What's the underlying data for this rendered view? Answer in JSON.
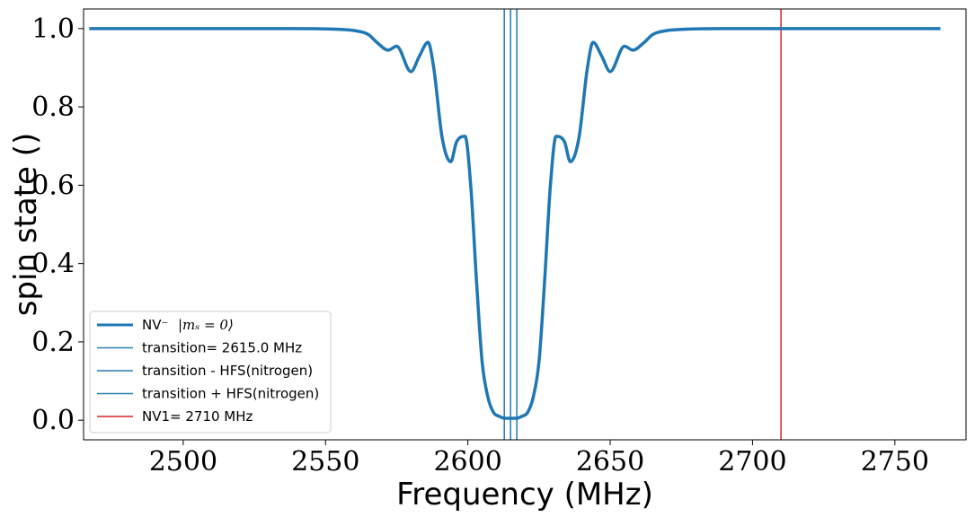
{
  "chart_data": {
    "type": "line",
    "title": "",
    "xlabel": "Frequency (MHz)",
    "ylabel": "spin state ()",
    "xlim": [
      2465,
      2775
    ],
    "ylim": [
      -0.05,
      1.05
    ],
    "x_ticks": [
      "2500",
      "2550",
      "2600",
      "2650",
      "2700",
      "2750"
    ],
    "x_tick_values": [
      2500,
      2550,
      2600,
      2650,
      2700,
      2750
    ],
    "y_ticks": [
      "0.0",
      "0.2",
      "0.4",
      "0.6",
      "0.8",
      "1.0"
    ],
    "y_tick_values": [
      0.0,
      0.2,
      0.4,
      0.6,
      0.8,
      1.0
    ],
    "grid": false,
    "legend_position": "lower-left",
    "series": [
      {
        "name": "NV⁻ |mₛ = 0⟩",
        "color": "#1f77b4",
        "x": [
          2467,
          2540,
          2555,
          2560,
          2565,
          2568,
          2572,
          2575,
          2580,
          2583,
          2586,
          2588,
          2591,
          2594,
          2596,
          2599,
          2601,
          2603,
          2605,
          2607,
          2609,
          2611,
          2613,
          2615,
          2617,
          2619,
          2621,
          2623,
          2625,
          2627,
          2629,
          2631,
          2634,
          2636,
          2639,
          2642,
          2644,
          2647,
          2650,
          2655,
          2658,
          2662,
          2665,
          2670,
          2675,
          2690,
          2710,
          2766
        ],
        "y": [
          1.0,
          1.0,
          0.998,
          0.995,
          0.985,
          0.965,
          0.945,
          0.955,
          0.89,
          0.93,
          0.965,
          0.9,
          0.72,
          0.66,
          0.71,
          0.725,
          0.6,
          0.36,
          0.15,
          0.06,
          0.02,
          0.01,
          0.005,
          0.005,
          0.005,
          0.01,
          0.02,
          0.06,
          0.15,
          0.36,
          0.6,
          0.725,
          0.71,
          0.66,
          0.72,
          0.9,
          0.965,
          0.93,
          0.89,
          0.955,
          0.945,
          0.965,
          0.985,
          0.995,
          0.998,
          1.0,
          1.0,
          1.0
        ]
      }
    ],
    "vlines": [
      {
        "name": "transition= 2615.0 MHz",
        "x": 2615.0,
        "color": "#1f77b4"
      },
      {
        "name": "transition - HFS(nitrogen)",
        "x": 2612.8,
        "color": "#1f77b4"
      },
      {
        "name": "transition + HFS(nitrogen)",
        "x": 2617.2,
        "color": "#1f77b4"
      },
      {
        "name": "NV1= 2710 MHz",
        "x": 2710,
        "color": "#d62728"
      }
    ]
  },
  "legend": {
    "entries": [
      {
        "label": "NV⁻",
        "math": "|mₛ = 0⟩",
        "color": "#1f77b4",
        "width": 3
      },
      {
        "label": "transition= 2615.0 MHz",
        "color": "#2a7fae",
        "width": 1.5
      },
      {
        "label": "transition - HFS(nitrogen)",
        "color": "#2a7fae",
        "width": 1.5
      },
      {
        "label": "transition + HFS(nitrogen)",
        "color": "#2a7fae",
        "width": 1.5
      },
      {
        "label": "NV1= 2710 MHz",
        "color": "#d62728",
        "width": 1.5
      }
    ]
  }
}
